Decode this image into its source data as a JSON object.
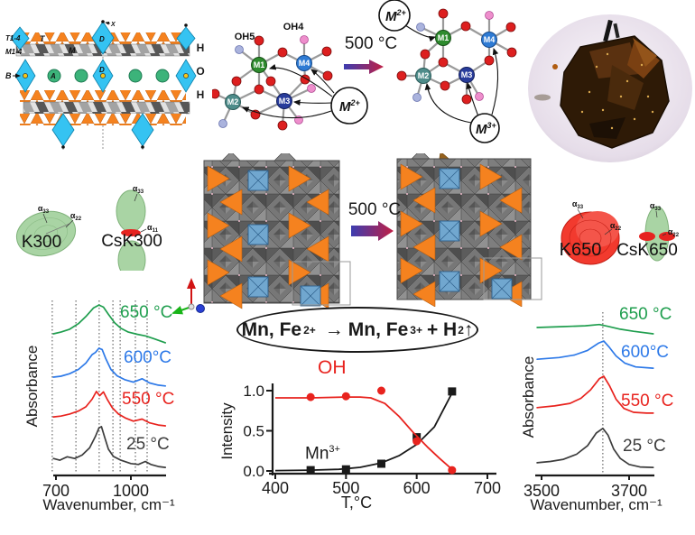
{
  "structure_panel": {
    "row_label_t": "T1-4",
    "row_label_m": "M1-4",
    "site_t": "T",
    "site_m": "M",
    "site_d_top": "D",
    "site_d_mid": "D",
    "site_a": "A",
    "site_b": "B",
    "site_x": "X",
    "water_column": {
      "h1": "H",
      "o": "O",
      "h2": "H"
    }
  },
  "cluster_panel": {
    "oh5": "OH5",
    "oh4": "OH4",
    "m1": "M1",
    "m2": "M2",
    "m3": "M3",
    "m4": "M4",
    "cation2_base": "M",
    "cation2_sup": "2+",
    "cation3_base": "M",
    "cation3_sup": "3+",
    "arrow_label": "500 °C"
  },
  "transform_panel": {
    "arrow_label": "500 °C"
  },
  "ellipsoids": {
    "k300": {
      "label": "K300",
      "a1_base": "α",
      "a1_sub": "33",
      "a2_base": "α",
      "a2_sub": "22"
    },
    "csk300": {
      "label": "CsK300",
      "a1_base": "α",
      "a1_sub": "33",
      "a2_base": "α",
      "a2_sub": "11"
    },
    "k650": {
      "label": "K650",
      "a1_base": "α",
      "a1_sub": "33",
      "a2_base": "α",
      "a2_sub": "22"
    },
    "csk650": {
      "label": "CsK650",
      "a1_base": "α",
      "a1_sub": "33",
      "a2_base": "α",
      "a2_sub": "22"
    }
  },
  "equation": {
    "p1": "Mn, Fe",
    "sup1": "2+",
    "p2": "→",
    "p3": "Mn, Fe",
    "sup2": "3+",
    "p4": "+ H",
    "sub1": "2",
    "p5": "↑"
  },
  "colors": {
    "orange": "#f5821f",
    "cyan": "#35c3f2",
    "green_site": "#3cb37a",
    "ellipsoid_green": "#a9d4a4",
    "ellipsoid_red": "#f23a2e",
    "arrow_gradient_start": "#3d3db0",
    "arrow_gradient_end": "#c01f45"
  },
  "chart_data": [
    {
      "id": "ftir-framework",
      "type": "line",
      "xlabel": "Wavenumber, cm⁻¹",
      "ylabel": "Absorbance",
      "xlim": [
        690,
        1140
      ],
      "x_ticks": [
        700,
        1000
      ],
      "dotted_x": [
        685,
        780,
        873,
        928,
        957,
        1018,
        1065
      ],
      "legend_position": "right-of-curves",
      "grid": "dotted-vertical",
      "series": [
        {
          "name": "25 °C",
          "color": "#3d3d3d",
          "points": [
            [
              690,
              0.4
            ],
            [
              715,
              0.36
            ],
            [
              745,
              0.44
            ],
            [
              775,
              0.4
            ],
            [
              805,
              0.48
            ],
            [
              835,
              0.65
            ],
            [
              858,
              0.92
            ],
            [
              872,
              1.12
            ],
            [
              882,
              1.15
            ],
            [
              895,
              0.9
            ],
            [
              910,
              0.62
            ],
            [
              930,
              0.45
            ],
            [
              960,
              0.36
            ],
            [
              1000,
              0.28
            ],
            [
              1030,
              0.26
            ],
            [
              1058,
              0.33
            ],
            [
              1080,
              0.26
            ],
            [
              1110,
              0.21
            ],
            [
              1138,
              0.19
            ]
          ]
        },
        {
          "name": "550 °C",
          "color": "#e8231e",
          "points": [
            [
              690,
              1.38
            ],
            [
              720,
              1.4
            ],
            [
              755,
              1.45
            ],
            [
              790,
              1.52
            ],
            [
              820,
              1.62
            ],
            [
              845,
              1.8
            ],
            [
              862,
              1.98
            ],
            [
              875,
              1.88
            ],
            [
              890,
              1.97
            ],
            [
              905,
              1.8
            ],
            [
              925,
              1.6
            ],
            [
              950,
              1.45
            ],
            [
              980,
              1.35
            ],
            [
              1010,
              1.28
            ],
            [
              1045,
              1.33
            ],
            [
              1075,
              1.24
            ],
            [
              1110,
              1.19
            ],
            [
              1138,
              1.17
            ]
          ]
        },
        {
          "name": "600°C",
          "color": "#2d79e8",
          "points": [
            [
              690,
              2.32
            ],
            [
              720,
              2.34
            ],
            [
              755,
              2.4
            ],
            [
              790,
              2.5
            ],
            [
              820,
              2.65
            ],
            [
              845,
              2.85
            ],
            [
              858,
              2.9
            ],
            [
              872,
              3.0
            ],
            [
              885,
              2.97
            ],
            [
              900,
              2.75
            ],
            [
              920,
              2.5
            ],
            [
              945,
              2.35
            ],
            [
              975,
              2.26
            ],
            [
              1010,
              2.2
            ],
            [
              1045,
              2.28
            ],
            [
              1075,
              2.18
            ],
            [
              1110,
              2.13
            ],
            [
              1138,
              2.11
            ]
          ]
        },
        {
          "name": "650 °C",
          "color": "#1f9e4e",
          "points": [
            [
              690,
              3.34
            ],
            [
              720,
              3.38
            ],
            [
              755,
              3.45
            ],
            [
              790,
              3.58
            ],
            [
              820,
              3.75
            ],
            [
              850,
              3.95
            ],
            [
              872,
              4.02
            ],
            [
              890,
              3.97
            ],
            [
              910,
              3.8
            ],
            [
              935,
              3.6
            ],
            [
              960,
              3.47
            ],
            [
              990,
              3.38
            ],
            [
              1025,
              3.33
            ],
            [
              1060,
              3.29
            ],
            [
              1095,
              3.22
            ],
            [
              1138,
              3.13
            ]
          ]
        }
      ]
    },
    {
      "id": "intensity-vs-T",
      "type": "scatter-line",
      "xlabel": "T,°C",
      "ylabel": "Intensity",
      "xlim": [
        400,
        700
      ],
      "ylim": [
        0,
        1
      ],
      "x_ticks": [
        400,
        500,
        600,
        700
      ],
      "y_ticks": [
        "1.0",
        "0.5",
        "0.0"
      ],
      "grid": "off",
      "series": [
        {
          "name": "OH",
          "color": "#e8231e",
          "marker": "circle",
          "marker_points": [
            [
              450,
              0.92
            ],
            [
              500,
              0.93
            ],
            [
              550,
              1.0
            ],
            [
              600,
              0.37
            ],
            [
              650,
              0.01
            ]
          ],
          "line_points": [
            [
              400,
              0.91
            ],
            [
              450,
              0.91
            ],
            [
              500,
              0.92
            ],
            [
              520,
              0.92
            ],
            [
              535,
              0.91
            ],
            [
              555,
              0.84
            ],
            [
              575,
              0.68
            ],
            [
              595,
              0.48
            ],
            [
              615,
              0.3
            ],
            [
              632,
              0.16
            ],
            [
              650,
              0.02
            ]
          ]
        },
        {
          "name": "Mn3+",
          "label_base": "Mn",
          "label_sup": "3+",
          "color": "#1a1a1a",
          "marker": "square",
          "marker_points": [
            [
              450,
              0.01
            ],
            [
              500,
              0.02
            ],
            [
              550,
              0.09
            ],
            [
              600,
              0.42
            ],
            [
              650,
              0.99
            ]
          ],
          "line_points": [
            [
              400,
              0.005
            ],
            [
              450,
              0.01
            ],
            [
              490,
              0.02
            ],
            [
              520,
              0.045
            ],
            [
              550,
              0.1
            ],
            [
              575,
              0.19
            ],
            [
              600,
              0.33
            ],
            [
              625,
              0.55
            ],
            [
              650,
              0.97
            ]
          ]
        }
      ]
    },
    {
      "id": "ftir-oh",
      "type": "line",
      "xlabel": "Wavenumber, cm⁻¹",
      "ylabel": "Absorbance",
      "xlim": [
        3485,
        3760
      ],
      "x_ticks": [
        3500,
        3700
      ],
      "dotted_x": [
        3640
      ],
      "grid": "dotted-vertical",
      "series": [
        {
          "name": "25 °C",
          "color": "#3d3d3d",
          "points": [
            [
              3490,
              0.3
            ],
            [
              3520,
              0.33
            ],
            [
              3550,
              0.38
            ],
            [
              3580,
              0.5
            ],
            [
              3605,
              0.7
            ],
            [
              3625,
              1.0
            ],
            [
              3640,
              1.11
            ],
            [
              3652,
              0.95
            ],
            [
              3665,
              0.62
            ],
            [
              3680,
              0.4
            ],
            [
              3700,
              0.26
            ],
            [
              3725,
              0.2
            ],
            [
              3755,
              0.19
            ]
          ]
        },
        {
          "name": "550 °C",
          "color": "#e8231e",
          "points": [
            [
              3490,
              1.6
            ],
            [
              3530,
              1.64
            ],
            [
              3565,
              1.7
            ],
            [
              3590,
              1.82
            ],
            [
              3612,
              2.02
            ],
            [
              3632,
              2.28
            ],
            [
              3642,
              2.34
            ],
            [
              3655,
              2.12
            ],
            [
              3670,
              1.8
            ],
            [
              3688,
              1.58
            ],
            [
              3710,
              1.49
            ],
            [
              3740,
              1.47
            ],
            [
              3755,
              1.47
            ]
          ]
        },
        {
          "name": "600°C",
          "color": "#2d79e8",
          "points": [
            [
              3490,
              2.74
            ],
            [
              3540,
              2.78
            ],
            [
              3575,
              2.84
            ],
            [
              3605,
              2.95
            ],
            [
              3630,
              3.12
            ],
            [
              3642,
              3.17
            ],
            [
              3655,
              3.02
            ],
            [
              3670,
              2.82
            ],
            [
              3690,
              2.65
            ],
            [
              3715,
              2.56
            ],
            [
              3755,
              2.53
            ]
          ]
        },
        {
          "name": "650 °C",
          "color": "#1f9e4e",
          "points": [
            [
              3490,
              3.49
            ],
            [
              3550,
              3.51
            ],
            [
              3600,
              3.53
            ],
            [
              3632,
              3.56
            ],
            [
              3650,
              3.52
            ],
            [
              3680,
              3.45
            ],
            [
              3710,
              3.4
            ],
            [
              3755,
              3.34
            ]
          ]
        }
      ]
    }
  ]
}
